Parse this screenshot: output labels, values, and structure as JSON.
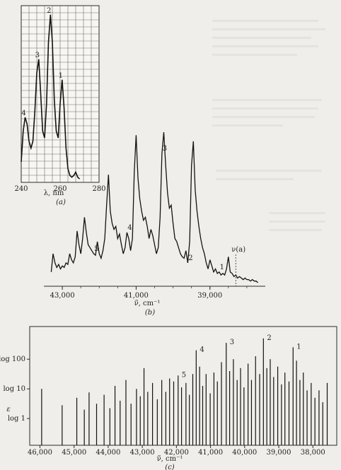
{
  "chart_data": [
    {
      "panel": "a",
      "type": "line",
      "xlabel": "λ, nm",
      "caption": "(a)",
      "xlim": [
        240,
        280
      ],
      "ticks": [
        "240",
        "260",
        "280"
      ],
      "tick_values": [
        240,
        260,
        280
      ],
      "grid": true,
      "peak_labels": [
        {
          "text": "4",
          "x": 242
        },
        {
          "text": "3",
          "x": 249
        },
        {
          "text": "2",
          "x": 255
        },
        {
          "text": "1",
          "x": 261
        }
      ],
      "series": [
        {
          "x": [
            240,
            241,
            242,
            243,
            244,
            245,
            246,
            247,
            248,
            249,
            250,
            251,
            252,
            253,
            254,
            255,
            256,
            257,
            258,
            259,
            260,
            261,
            262,
            263,
            264,
            265,
            266,
            267,
            268,
            269,
            270
          ],
          "values": [
            0.12,
            0.3,
            0.38,
            0.34,
            0.24,
            0.2,
            0.24,
            0.42,
            0.64,
            0.72,
            0.52,
            0.3,
            0.26,
            0.46,
            0.82,
            0.98,
            0.82,
            0.48,
            0.3,
            0.26,
            0.46,
            0.6,
            0.44,
            0.2,
            0.08,
            0.04,
            0.03,
            0.04,
            0.06,
            0.03,
            0.02
          ]
        }
      ]
    },
    {
      "panel": "b",
      "type": "line",
      "xlabel": "ν̃, cm⁻¹",
      "caption": "(b)",
      "xlim": [
        43500,
        37500
      ],
      "ticks": [
        "43,000",
        "41,000",
        "39,000"
      ],
      "tick_values": [
        43000,
        41000,
        39000
      ],
      "annotation": "ν(a)",
      "annotation_x": 38300,
      "peak_labels": [
        {
          "text": "5",
          "x": 42150
        },
        {
          "text": "4",
          "x": 41250
        },
        {
          "text": "3",
          "x": 40300
        },
        {
          "text": "2",
          "x": 39600
        },
        {
          "text": "1",
          "x": 38750
        }
      ],
      "series": [
        {
          "x": [
            43300,
            43250,
            43200,
            43150,
            43100,
            43050,
            43000,
            42950,
            42900,
            42850,
            42800,
            42750,
            42700,
            42650,
            42600,
            42550,
            42500,
            42450,
            42400,
            42350,
            42300,
            42250,
            42200,
            42150,
            42100,
            42050,
            42000,
            41950,
            41900,
            41850,
            41800,
            41750,
            41700,
            41650,
            41600,
            41550,
            41500,
            41450,
            41400,
            41350,
            41300,
            41250,
            41200,
            41150,
            41100,
            41050,
            41000,
            40950,
            40900,
            40850,
            40800,
            40750,
            40700,
            40650,
            40600,
            40550,
            40500,
            40450,
            40400,
            40350,
            40300,
            40250,
            40200,
            40150,
            40100,
            40050,
            40000,
            39950,
            39900,
            39850,
            39800,
            39750,
            39700,
            39650,
            39600,
            39550,
            39500,
            39450,
            39400,
            39350,
            39300,
            39250,
            39200,
            39150,
            39100,
            39050,
            39000,
            38950,
            38900,
            38850,
            38800,
            38750,
            38700,
            38650,
            38600,
            38550,
            38500,
            38450,
            38400,
            38350,
            38300,
            38250,
            38200,
            38150,
            38100,
            38050,
            38000,
            37950,
            37900,
            37850,
            37800,
            37750,
            37700
          ],
          "values": [
            0.08,
            0.2,
            0.14,
            0.11,
            0.13,
            0.1,
            0.12,
            0.11,
            0.14,
            0.13,
            0.2,
            0.16,
            0.14,
            0.18,
            0.35,
            0.26,
            0.2,
            0.3,
            0.44,
            0.34,
            0.26,
            0.24,
            0.22,
            0.2,
            0.19,
            0.28,
            0.2,
            0.17,
            0.22,
            0.3,
            0.52,
            0.72,
            0.48,
            0.4,
            0.36,
            0.38,
            0.3,
            0.33,
            0.26,
            0.2,
            0.24,
            0.34,
            0.3,
            0.22,
            0.3,
            0.74,
            0.98,
            0.7,
            0.56,
            0.48,
            0.42,
            0.44,
            0.38,
            0.3,
            0.36,
            0.32,
            0.26,
            0.2,
            0.24,
            0.44,
            0.86,
            1.0,
            0.78,
            0.6,
            0.5,
            0.52,
            0.4,
            0.3,
            0.28,
            0.24,
            0.2,
            0.18,
            0.17,
            0.22,
            0.14,
            0.28,
            0.78,
            0.94,
            0.62,
            0.48,
            0.38,
            0.3,
            0.24,
            0.2,
            0.14,
            0.1,
            0.16,
            0.12,
            0.08,
            0.1,
            0.07,
            0.08,
            0.06,
            0.07,
            0.06,
            0.1,
            0.18,
            0.08,
            0.07,
            0.05,
            0.06,
            0.04,
            0.05,
            0.04,
            0.03,
            0.04,
            0.03,
            0.03,
            0.02,
            0.03,
            0.02,
            0.02,
            0.01
          ]
        }
      ]
    },
    {
      "panel": "c",
      "type": "bar",
      "xlabel": "ν̃, cm⁻¹",
      "ylabel": "ε",
      "caption": "(c)",
      "xlim": [
        46300,
        37300
      ],
      "ticks": [
        "46,000",
        "45,000",
        "44,000",
        "43,000",
        "42,000",
        "41,000",
        "40,000",
        "39,000",
        "38,000"
      ],
      "tick_values": [
        46000,
        45000,
        44000,
        43000,
        42000,
        41000,
        40000,
        39000,
        38000
      ],
      "ylim": [
        -0.9,
        3.1
      ],
      "yticks": [
        "log 1",
        "log 10",
        "log 100"
      ],
      "ytick_values": [
        0,
        1,
        2
      ],
      "peak_labels": [
        {
          "text": "5",
          "x": 41950
        },
        {
          "text": "4",
          "x": 41420
        },
        {
          "text": "3",
          "x": 40540
        },
        {
          "text": "2",
          "x": 39450
        },
        {
          "text": "1",
          "x": 38580
        }
      ],
      "lines": [
        {
          "x": 45950,
          "y": 1.0
        },
        {
          "x": 45350,
          "y": 0.45
        },
        {
          "x": 44920,
          "y": 0.7
        },
        {
          "x": 44700,
          "y": 0.3
        },
        {
          "x": 44560,
          "y": 0.88
        },
        {
          "x": 44340,
          "y": 0.5
        },
        {
          "x": 44120,
          "y": 0.8
        },
        {
          "x": 43950,
          "y": 0.35
        },
        {
          "x": 43800,
          "y": 1.1
        },
        {
          "x": 43650,
          "y": 0.6
        },
        {
          "x": 43480,
          "y": 1.3
        },
        {
          "x": 43330,
          "y": 0.5
        },
        {
          "x": 43170,
          "y": 1.0
        },
        {
          "x": 43060,
          "y": 0.75
        },
        {
          "x": 42950,
          "y": 1.7
        },
        {
          "x": 42840,
          "y": 0.9
        },
        {
          "x": 42700,
          "y": 1.2
        },
        {
          "x": 42560,
          "y": 0.65
        },
        {
          "x": 42430,
          "y": 1.3
        },
        {
          "x": 42310,
          "y": 0.9
        },
        {
          "x": 42200,
          "y": 1.35
        },
        {
          "x": 42080,
          "y": 1.25
        },
        {
          "x": 41950,
          "y": 1.45
        },
        {
          "x": 41850,
          "y": 1.05
        },
        {
          "x": 41720,
          "y": 1.2
        },
        {
          "x": 41620,
          "y": 0.8
        },
        {
          "x": 41520,
          "y": 1.5
        },
        {
          "x": 41420,
          "y": 2.3
        },
        {
          "x": 41320,
          "y": 1.75
        },
        {
          "x": 41230,
          "y": 1.1
        },
        {
          "x": 41130,
          "y": 1.5
        },
        {
          "x": 41010,
          "y": 0.85
        },
        {
          "x": 40900,
          "y": 1.55
        },
        {
          "x": 40800,
          "y": 1.25
        },
        {
          "x": 40680,
          "y": 1.9
        },
        {
          "x": 40540,
          "y": 2.55
        },
        {
          "x": 40440,
          "y": 1.6
        },
        {
          "x": 40330,
          "y": 2.0
        },
        {
          "x": 40220,
          "y": 1.3
        },
        {
          "x": 40120,
          "y": 1.7
        },
        {
          "x": 40020,
          "y": 1.05
        },
        {
          "x": 39900,
          "y": 1.85
        },
        {
          "x": 39800,
          "y": 1.3
        },
        {
          "x": 39680,
          "y": 2.1
        },
        {
          "x": 39560,
          "y": 1.5
        },
        {
          "x": 39450,
          "y": 2.7
        },
        {
          "x": 39350,
          "y": 1.7
        },
        {
          "x": 39250,
          "y": 2.0
        },
        {
          "x": 39150,
          "y": 1.4
        },
        {
          "x": 39030,
          "y": 1.75
        },
        {
          "x": 38920,
          "y": 1.15
        },
        {
          "x": 38820,
          "y": 1.55
        },
        {
          "x": 38700,
          "y": 1.25
        },
        {
          "x": 38580,
          "y": 2.4
        },
        {
          "x": 38480,
          "y": 1.95
        },
        {
          "x": 38380,
          "y": 1.3
        },
        {
          "x": 38280,
          "y": 1.55
        },
        {
          "x": 38170,
          "y": 0.95
        },
        {
          "x": 38050,
          "y": 1.2
        },
        {
          "x": 37940,
          "y": 0.7
        },
        {
          "x": 37820,
          "y": 0.95
        },
        {
          "x": 37710,
          "y": 0.55
        },
        {
          "x": 37580,
          "y": 1.2
        }
      ]
    }
  ]
}
